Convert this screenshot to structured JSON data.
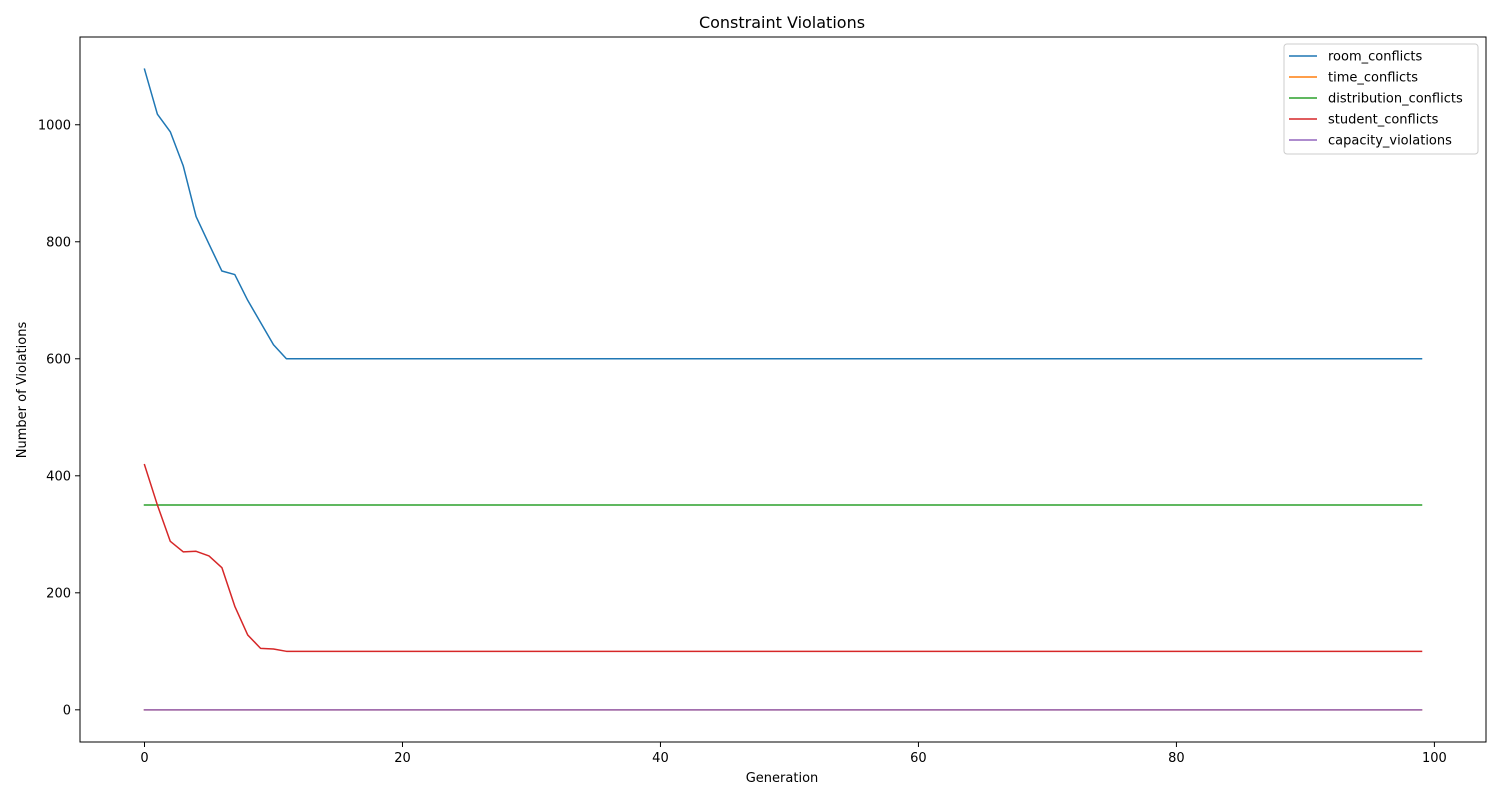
{
  "chart_data": {
    "type": "line",
    "title": "Constraint Violations",
    "xlabel": "Generation",
    "ylabel": "Number of Violations",
    "xlim": [
      -5,
      104
    ],
    "ylim": [
      -55,
      1150
    ],
    "x_ticks": [
      0,
      20,
      40,
      60,
      80,
      100
    ],
    "y_ticks": [
      0,
      200,
      400,
      600,
      800,
      1000
    ],
    "grid": false,
    "legend_position": "top-right",
    "x_range": [
      0,
      99
    ],
    "series": [
      {
        "name": "room_conflicts",
        "color": "#1f77b4",
        "points": [
          [
            0,
            1095
          ],
          [
            1,
            1018
          ],
          [
            2,
            988
          ],
          [
            3,
            930
          ],
          [
            4,
            843
          ],
          [
            5,
            796
          ],
          [
            6,
            750
          ],
          [
            7,
            744
          ],
          [
            8,
            700
          ],
          [
            9,
            662
          ],
          [
            10,
            624
          ],
          [
            11,
            600
          ],
          [
            99,
            600
          ]
        ]
      },
      {
        "name": "time_conflicts",
        "color": "#ff7f0e",
        "points": [
          [
            0,
            0
          ],
          [
            99,
            0
          ]
        ]
      },
      {
        "name": "distribution_conflicts",
        "color": "#2ca02c",
        "points": [
          [
            0,
            350
          ],
          [
            99,
            350
          ]
        ]
      },
      {
        "name": "student_conflicts",
        "color": "#d62728",
        "points": [
          [
            0,
            419
          ],
          [
            1,
            350
          ],
          [
            2,
            288
          ],
          [
            3,
            270
          ],
          [
            4,
            271
          ],
          [
            5,
            263
          ],
          [
            6,
            243
          ],
          [
            7,
            177
          ],
          [
            8,
            128
          ],
          [
            9,
            105
          ],
          [
            10,
            104
          ],
          [
            11,
            100
          ],
          [
            99,
            100
          ]
        ]
      },
      {
        "name": "capacity_violations",
        "color": "#9467bd",
        "points": [
          [
            0,
            0
          ],
          [
            99,
            0
          ]
        ]
      }
    ]
  }
}
